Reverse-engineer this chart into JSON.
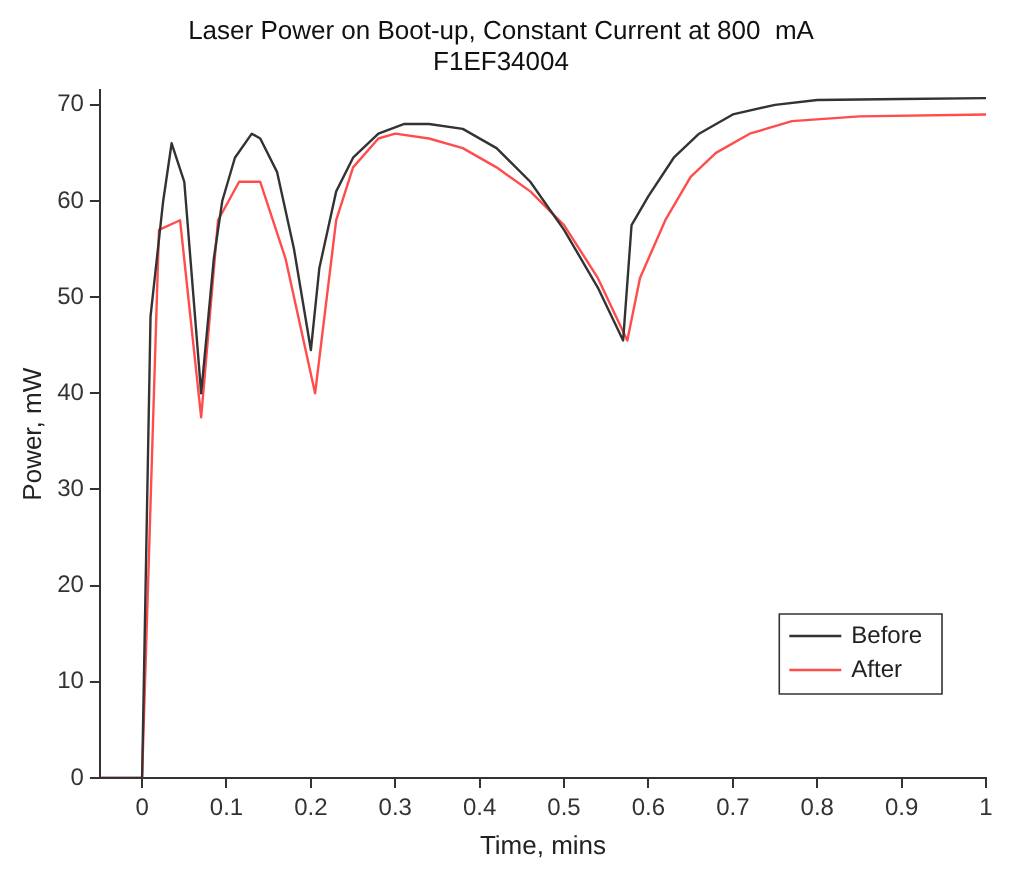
{
  "chart_data": {
    "type": "line",
    "title": "Laser Power on Boot-up, Constant Current at 800  mA\nF1EF34004",
    "xlabel": "Time, mins",
    "ylabel": "Power, mW",
    "xlim": [
      -0.05,
      1
    ],
    "xticks": [
      0,
      0.1,
      0.2,
      0.3,
      0.4,
      0.5,
      0.6,
      0.7,
      0.8,
      0.9,
      1
    ],
    "ylim": [
      0,
      71.5
    ],
    "yticks": [
      0,
      10,
      20,
      30,
      40,
      50,
      60,
      70
    ],
    "grid": false,
    "legend": "bottom right",
    "marker": "none",
    "line_style": "solid",
    "series": [
      {
        "name": "Before",
        "color": "#333333",
        "x": [
          -0.05,
          0,
          0.01,
          0.025,
          0.035,
          0.05,
          0.07,
          0.085,
          0.095,
          0.11,
          0.13,
          0.14,
          0.16,
          0.18,
          0.2,
          0.21,
          0.23,
          0.25,
          0.28,
          0.31,
          0.34,
          0.38,
          0.42,
          0.46,
          0.5,
          0.54,
          0.57,
          0.58,
          0.6,
          0.63,
          0.66,
          0.7,
          0.75,
          0.8,
          0.9,
          1
        ],
        "values": [
          0,
          0,
          48,
          60,
          66,
          62,
          40,
          54,
          60,
          64.5,
          67,
          66.5,
          63,
          55,
          44.5,
          53,
          61,
          64.5,
          67,
          68,
          68,
          67.5,
          65.5,
          62,
          57,
          51,
          45.5,
          57.5,
          60.5,
          64.5,
          67,
          69,
          70,
          70.5,
          70.6,
          70.7
        ]
      },
      {
        "name": "After",
        "color": "#ff4d4d",
        "x": [
          -0.05,
          0,
          0.02,
          0.045,
          0.07,
          0.09,
          0.115,
          0.14,
          0.17,
          0.205,
          0.23,
          0.25,
          0.28,
          0.3,
          0.34,
          0.38,
          0.42,
          0.46,
          0.5,
          0.54,
          0.575,
          0.59,
          0.62,
          0.65,
          0.68,
          0.72,
          0.77,
          0.85,
          1
        ],
        "values": [
          0,
          0,
          57,
          58,
          37.5,
          58,
          62,
          62,
          54,
          40,
          58,
          63.5,
          66.5,
          67,
          66.5,
          65.5,
          63.5,
          61,
          57.5,
          52,
          45.5,
          52,
          58,
          62.5,
          65,
          67,
          68.3,
          68.8,
          69
        ]
      }
    ]
  }
}
